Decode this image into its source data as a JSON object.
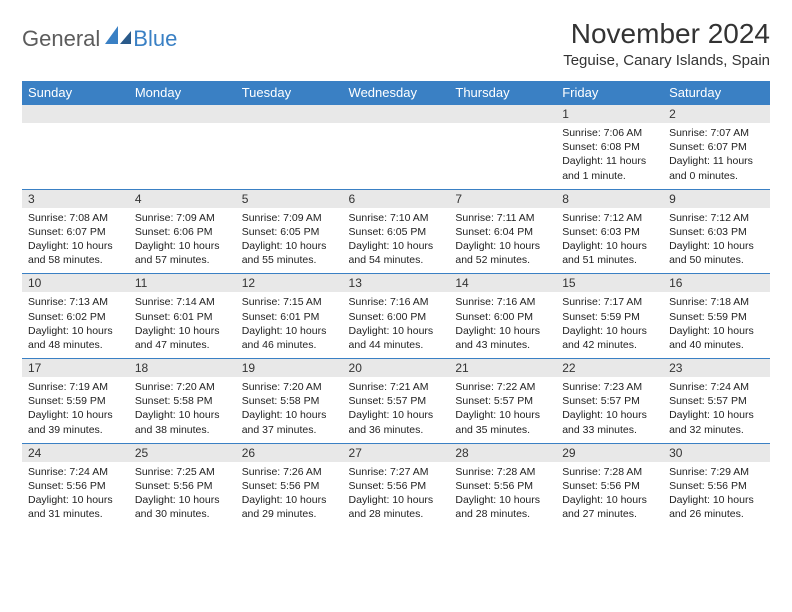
{
  "logo": {
    "part1": "General",
    "part2": "Blue"
  },
  "title": "November 2024",
  "location": "Teguise, Canary Islands, Spain",
  "colors": {
    "header_bg": "#3a80c4",
    "header_text": "#ffffff",
    "daynum_bg": "#e8e8e8",
    "border": "#3a80c4",
    "logo_gray": "#5c5c5c",
    "logo_blue": "#3a80c4"
  },
  "weekdays": [
    "Sunday",
    "Monday",
    "Tuesday",
    "Wednesday",
    "Thursday",
    "Friday",
    "Saturday"
  ],
  "weeks": [
    {
      "nums": [
        "",
        "",
        "",
        "",
        "",
        "1",
        "2"
      ],
      "cells": [
        null,
        null,
        null,
        null,
        null,
        {
          "sunrise": "Sunrise: 7:06 AM",
          "sunset": "Sunset: 6:08 PM",
          "daylight": "Daylight: 11 hours and 1 minute."
        },
        {
          "sunrise": "Sunrise: 7:07 AM",
          "sunset": "Sunset: 6:07 PM",
          "daylight": "Daylight: 11 hours and 0 minutes."
        }
      ]
    },
    {
      "nums": [
        "3",
        "4",
        "5",
        "6",
        "7",
        "8",
        "9"
      ],
      "cells": [
        {
          "sunrise": "Sunrise: 7:08 AM",
          "sunset": "Sunset: 6:07 PM",
          "daylight": "Daylight: 10 hours and 58 minutes."
        },
        {
          "sunrise": "Sunrise: 7:09 AM",
          "sunset": "Sunset: 6:06 PM",
          "daylight": "Daylight: 10 hours and 57 minutes."
        },
        {
          "sunrise": "Sunrise: 7:09 AM",
          "sunset": "Sunset: 6:05 PM",
          "daylight": "Daylight: 10 hours and 55 minutes."
        },
        {
          "sunrise": "Sunrise: 7:10 AM",
          "sunset": "Sunset: 6:05 PM",
          "daylight": "Daylight: 10 hours and 54 minutes."
        },
        {
          "sunrise": "Sunrise: 7:11 AM",
          "sunset": "Sunset: 6:04 PM",
          "daylight": "Daylight: 10 hours and 52 minutes."
        },
        {
          "sunrise": "Sunrise: 7:12 AM",
          "sunset": "Sunset: 6:03 PM",
          "daylight": "Daylight: 10 hours and 51 minutes."
        },
        {
          "sunrise": "Sunrise: 7:12 AM",
          "sunset": "Sunset: 6:03 PM",
          "daylight": "Daylight: 10 hours and 50 minutes."
        }
      ]
    },
    {
      "nums": [
        "10",
        "11",
        "12",
        "13",
        "14",
        "15",
        "16"
      ],
      "cells": [
        {
          "sunrise": "Sunrise: 7:13 AM",
          "sunset": "Sunset: 6:02 PM",
          "daylight": "Daylight: 10 hours and 48 minutes."
        },
        {
          "sunrise": "Sunrise: 7:14 AM",
          "sunset": "Sunset: 6:01 PM",
          "daylight": "Daylight: 10 hours and 47 minutes."
        },
        {
          "sunrise": "Sunrise: 7:15 AM",
          "sunset": "Sunset: 6:01 PM",
          "daylight": "Daylight: 10 hours and 46 minutes."
        },
        {
          "sunrise": "Sunrise: 7:16 AM",
          "sunset": "Sunset: 6:00 PM",
          "daylight": "Daylight: 10 hours and 44 minutes."
        },
        {
          "sunrise": "Sunrise: 7:16 AM",
          "sunset": "Sunset: 6:00 PM",
          "daylight": "Daylight: 10 hours and 43 minutes."
        },
        {
          "sunrise": "Sunrise: 7:17 AM",
          "sunset": "Sunset: 5:59 PM",
          "daylight": "Daylight: 10 hours and 42 minutes."
        },
        {
          "sunrise": "Sunrise: 7:18 AM",
          "sunset": "Sunset: 5:59 PM",
          "daylight": "Daylight: 10 hours and 40 minutes."
        }
      ]
    },
    {
      "nums": [
        "17",
        "18",
        "19",
        "20",
        "21",
        "22",
        "23"
      ],
      "cells": [
        {
          "sunrise": "Sunrise: 7:19 AM",
          "sunset": "Sunset: 5:59 PM",
          "daylight": "Daylight: 10 hours and 39 minutes."
        },
        {
          "sunrise": "Sunrise: 7:20 AM",
          "sunset": "Sunset: 5:58 PM",
          "daylight": "Daylight: 10 hours and 38 minutes."
        },
        {
          "sunrise": "Sunrise: 7:20 AM",
          "sunset": "Sunset: 5:58 PM",
          "daylight": "Daylight: 10 hours and 37 minutes."
        },
        {
          "sunrise": "Sunrise: 7:21 AM",
          "sunset": "Sunset: 5:57 PM",
          "daylight": "Daylight: 10 hours and 36 minutes."
        },
        {
          "sunrise": "Sunrise: 7:22 AM",
          "sunset": "Sunset: 5:57 PM",
          "daylight": "Daylight: 10 hours and 35 minutes."
        },
        {
          "sunrise": "Sunrise: 7:23 AM",
          "sunset": "Sunset: 5:57 PM",
          "daylight": "Daylight: 10 hours and 33 minutes."
        },
        {
          "sunrise": "Sunrise: 7:24 AM",
          "sunset": "Sunset: 5:57 PM",
          "daylight": "Daylight: 10 hours and 32 minutes."
        }
      ]
    },
    {
      "nums": [
        "24",
        "25",
        "26",
        "27",
        "28",
        "29",
        "30"
      ],
      "cells": [
        {
          "sunrise": "Sunrise: 7:24 AM",
          "sunset": "Sunset: 5:56 PM",
          "daylight": "Daylight: 10 hours and 31 minutes."
        },
        {
          "sunrise": "Sunrise: 7:25 AM",
          "sunset": "Sunset: 5:56 PM",
          "daylight": "Daylight: 10 hours and 30 minutes."
        },
        {
          "sunrise": "Sunrise: 7:26 AM",
          "sunset": "Sunset: 5:56 PM",
          "daylight": "Daylight: 10 hours and 29 minutes."
        },
        {
          "sunrise": "Sunrise: 7:27 AM",
          "sunset": "Sunset: 5:56 PM",
          "daylight": "Daylight: 10 hours and 28 minutes."
        },
        {
          "sunrise": "Sunrise: 7:28 AM",
          "sunset": "Sunset: 5:56 PM",
          "daylight": "Daylight: 10 hours and 28 minutes."
        },
        {
          "sunrise": "Sunrise: 7:28 AM",
          "sunset": "Sunset: 5:56 PM",
          "daylight": "Daylight: 10 hours and 27 minutes."
        },
        {
          "sunrise": "Sunrise: 7:29 AM",
          "sunset": "Sunset: 5:56 PM",
          "daylight": "Daylight: 10 hours and 26 minutes."
        }
      ]
    }
  ]
}
